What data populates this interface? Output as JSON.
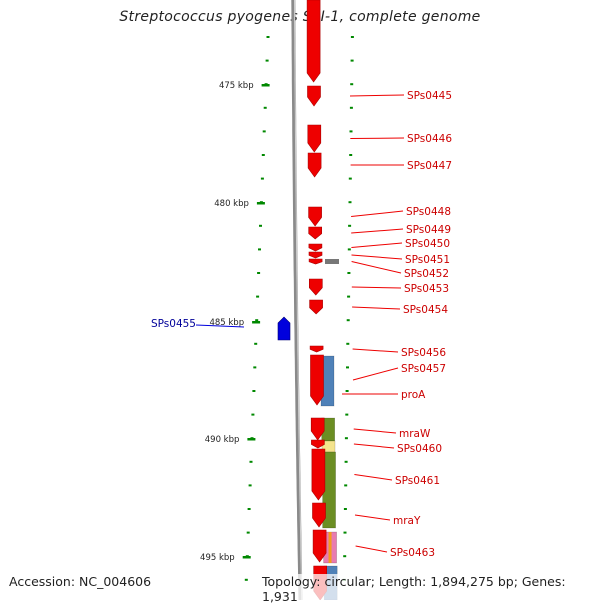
{
  "title": "Streptococcus pyogenes SSI-1, complete genome",
  "footer": {
    "accession": "Accession: NC_004606",
    "topology": "Topology: circular; Length: 1,894,275 bp; Genes: 1,931"
  },
  "scale": {
    "unit": "kbp",
    "major_ticks": [
      {
        "label": "475 kbp"
      },
      {
        "label": "480 kbp"
      },
      {
        "label": "485 kbp"
      },
      {
        "label": "490 kbp"
      },
      {
        "label": "495 kbp"
      }
    ]
  },
  "genes": [
    {
      "label": "SPs0445",
      "strand": "forward"
    },
    {
      "label": "SPs0446",
      "strand": "forward"
    },
    {
      "label": "SPs0447",
      "strand": "forward"
    },
    {
      "label": "SPs0448",
      "strand": "forward"
    },
    {
      "label": "SPs0449",
      "strand": "forward"
    },
    {
      "label": "SPs0450",
      "strand": "forward"
    },
    {
      "label": "SPs0451",
      "strand": "forward"
    },
    {
      "label": "SPs0452",
      "strand": "forward"
    },
    {
      "label": "SPs0453",
      "strand": "forward"
    },
    {
      "label": "SPs0454",
      "strand": "forward"
    },
    {
      "label": "SPs0455",
      "strand": "reverse"
    },
    {
      "label": "SPs0456",
      "strand": "forward"
    },
    {
      "label": "SPs0457",
      "strand": "forward"
    },
    {
      "label": "proA",
      "strand": "forward"
    },
    {
      "label": "mraW",
      "strand": "forward"
    },
    {
      "label": "SPs0460",
      "strand": "forward"
    },
    {
      "label": "SPs0461",
      "strand": "forward"
    },
    {
      "label": "mraY",
      "strand": "forward"
    },
    {
      "label": "SPs0463",
      "strand": "forward"
    }
  ],
  "colors": {
    "forward_gene": "#ee0000",
    "reverse_gene": "#0000dd",
    "forward_label": "#cc0000",
    "reverse_label": "#000099",
    "backbone": "#8a8a8a",
    "tick": "#008800",
    "feature_blue": "#4f81b8",
    "feature_green": "#6b8e23",
    "feature_yellow": "#f4e38c",
    "feature_orange": "#f39a1e",
    "feature_pink": "#e87bb0",
    "feature_gray": "#777777"
  }
}
